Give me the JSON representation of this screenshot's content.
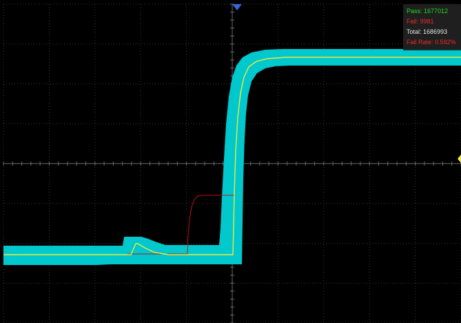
{
  "stats": {
    "pass": "Pass: 1677012",
    "fail": "Fail: 9981",
    "total": "Total: 1686993",
    "fail_rate": "Fail Rate: 0.592%"
  },
  "colors": {
    "background": "#000000",
    "grid": "#3a3a3a",
    "axis": "#6a6a6a",
    "mask": "#00c8cc",
    "trace": "#f2ea3a",
    "fail_trace": "#c01010",
    "trigger_marker": "#3466d8",
    "pass_text": "#22dd22",
    "fail_text": "#ee2a2a",
    "total_text": "#e6e6e6"
  },
  "markers": {
    "trigger_icon": "triangle-down-icon",
    "level_icon": "triangle-left-icon"
  }
}
